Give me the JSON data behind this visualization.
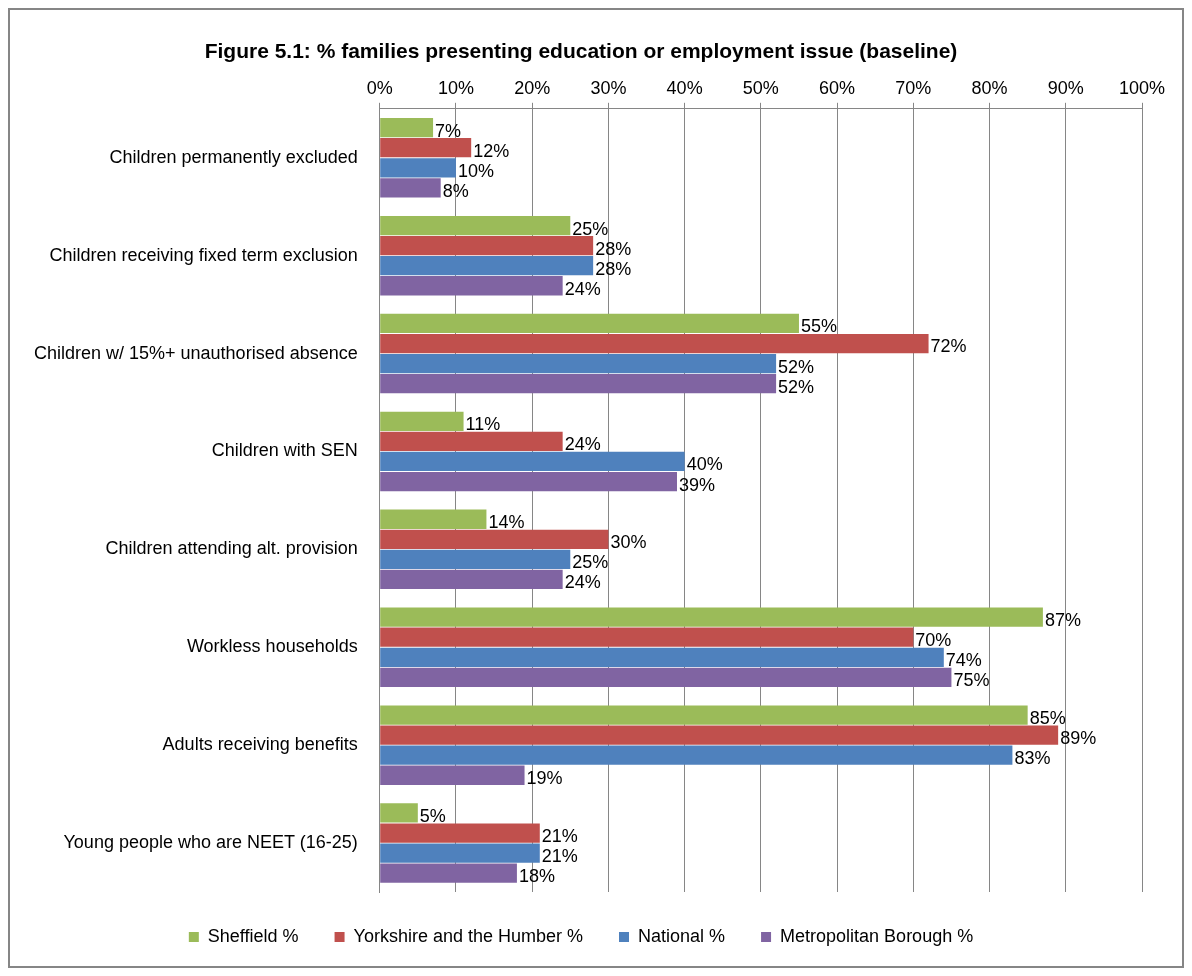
{
  "chart_data": {
    "type": "bar",
    "orientation": "horizontal",
    "title": "Figure 5.1: % families presenting education or employment issue (baseline)",
    "categories": [
      "Children permanently excluded",
      "Children receiving fixed term exclusion",
      "Children w/ 15%+ unauthorised absence",
      "Children with SEN",
      "Children attending alt. provision",
      "Workless households",
      "Adults receiving benefits",
      "Young people who are NEET (16-25)"
    ],
    "series": [
      {
        "name": "Sheffield %",
        "color": "#9bbb59",
        "values": [
          7,
          25,
          55,
          11,
          14,
          87,
          85,
          5
        ],
        "value_labels": [
          "7%",
          "25%",
          "55%",
          "11%",
          "14%",
          "87%",
          "85%",
          "5%"
        ]
      },
      {
        "name": "Yorkshire and the Humber %",
        "color": "#c0504d",
        "values": [
          12,
          28,
          72,
          24,
          30,
          70,
          89,
          21
        ],
        "value_labels": [
          "12%",
          "28%",
          "72%",
          "24%",
          "30%",
          "70%",
          "89%",
          "21%"
        ]
      },
      {
        "name": "National %",
        "color": "#4f81bd",
        "values": [
          10,
          28,
          52,
          40,
          25,
          74,
          83,
          21
        ],
        "value_labels": [
          "10%",
          "28%",
          "52%",
          "40%",
          "25%",
          "74%",
          "83%",
          "21%"
        ]
      },
      {
        "name": "Metropolitan Borough %",
        "color": "#8064a2",
        "values": [
          8,
          24,
          52,
          39,
          24,
          75,
          19,
          18
        ],
        "value_labels": [
          "8%",
          "24%",
          "52%",
          "39%",
          "24%",
          "75%",
          "19%",
          "18%"
        ]
      }
    ],
    "xlim": [
      0,
      100
    ],
    "xticks": [
      {
        "value": 0,
        "label": "0%"
      },
      {
        "value": 10,
        "label": "10%"
      },
      {
        "value": 20,
        "label": "20%"
      },
      {
        "value": 30,
        "label": "30%"
      },
      {
        "value": 40,
        "label": "40%"
      },
      {
        "value": 50,
        "label": "50%"
      },
      {
        "value": 60,
        "label": "60%"
      },
      {
        "value": 70,
        "label": "70%"
      },
      {
        "value": 80,
        "label": "80%"
      },
      {
        "value": 90,
        "label": "90%"
      },
      {
        "value": 100,
        "label": "100%"
      }
    ],
    "grid": "x",
    "legend": "bottom"
  }
}
